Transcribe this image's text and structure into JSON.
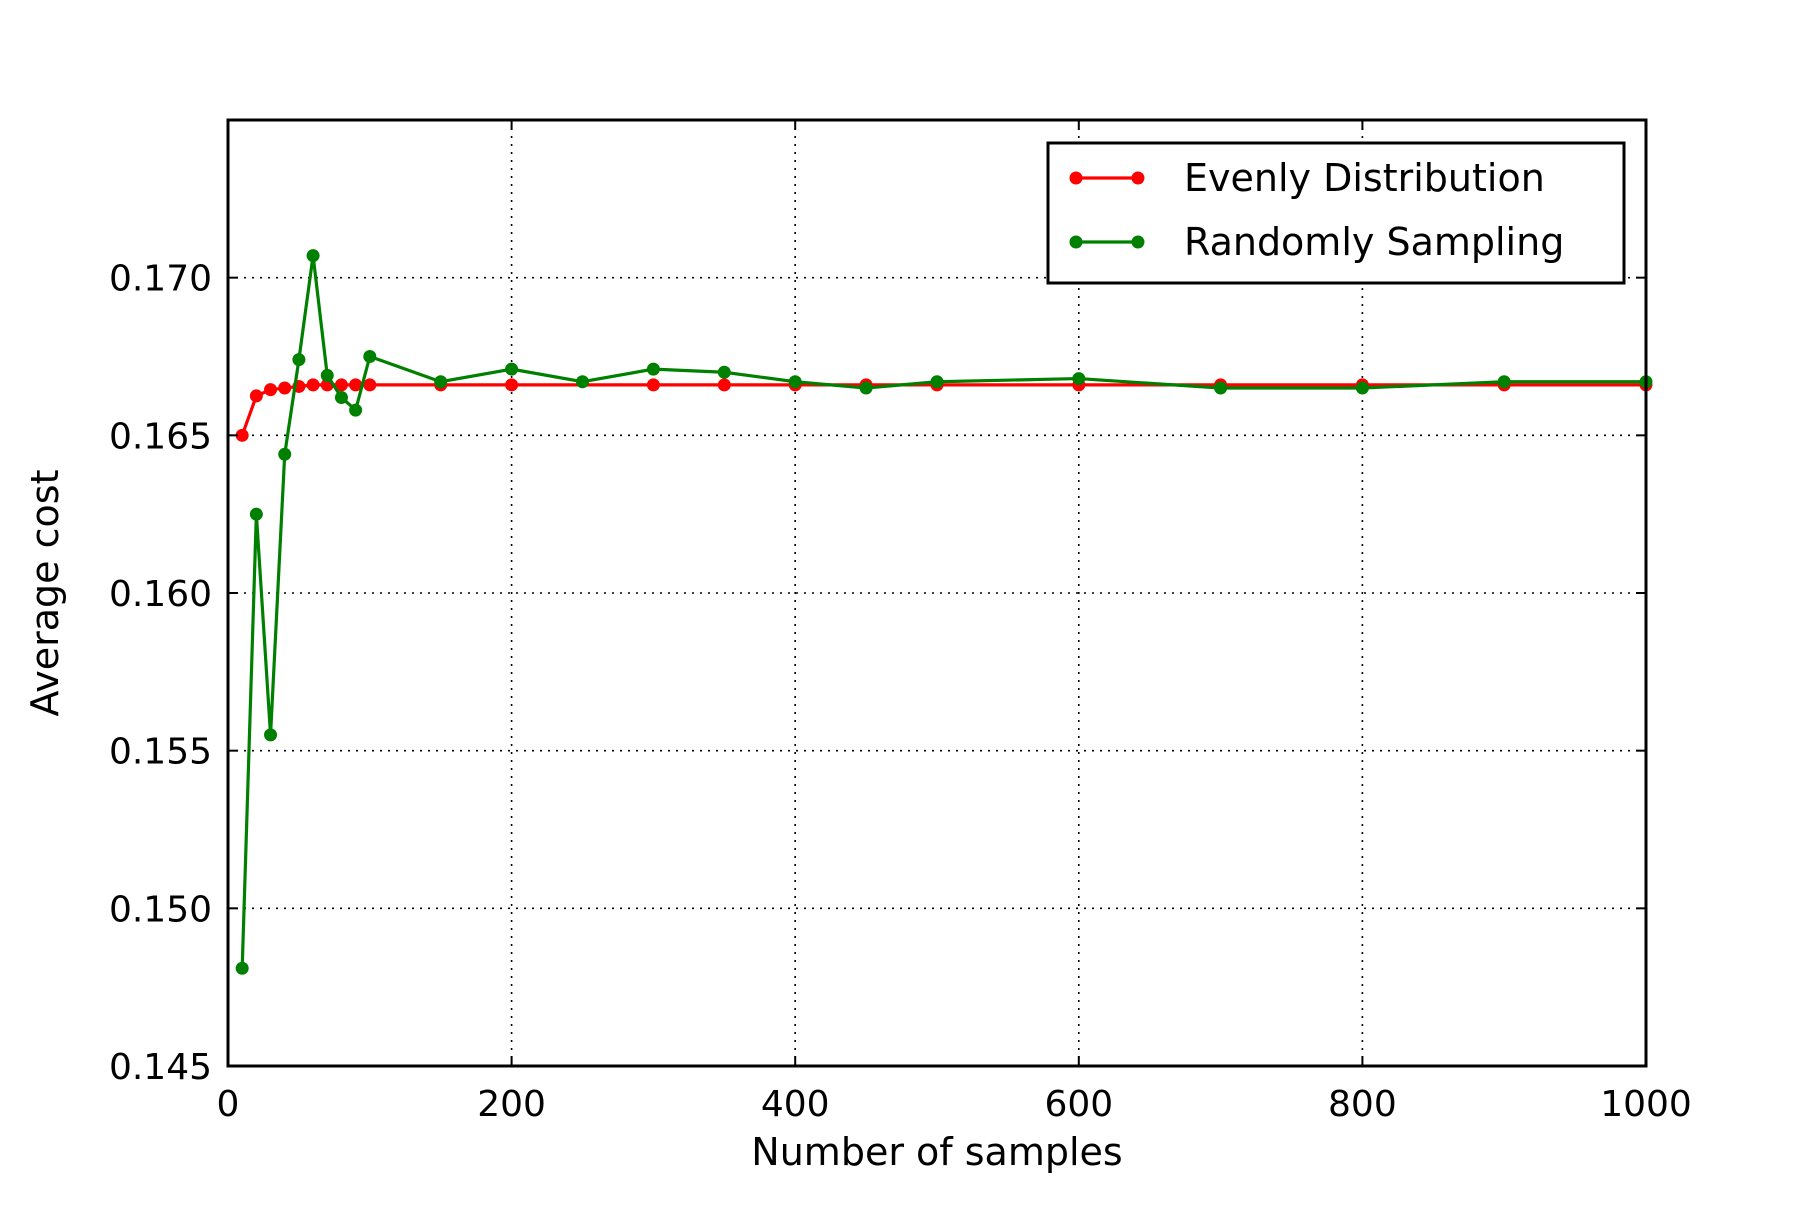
{
  "chart_data": {
    "type": "line",
    "title": "",
    "xlabel": "Number of samples",
    "ylabel": "Average cost",
    "xlim": [
      0,
      1000
    ],
    "ylim": [
      0.145,
      0.175
    ],
    "xticks": [
      0,
      200,
      400,
      600,
      800,
      1000
    ],
    "xtick_labels": [
      "0",
      "200",
      "400",
      "600",
      "800",
      "1000"
    ],
    "yticks": [
      0.145,
      0.15,
      0.155,
      0.16,
      0.165,
      0.17
    ],
    "ytick_labels": [
      "0.145",
      "0.150",
      "0.155",
      "0.160",
      "0.165",
      "0.170"
    ],
    "grid": true,
    "legend_position": "top-right",
    "series": [
      {
        "name": "Evenly Distribution",
        "color": "#ff0000",
        "x": [
          10,
          20,
          30,
          40,
          50,
          60,
          70,
          80,
          90,
          100,
          150,
          200,
          300,
          350,
          400,
          450,
          500,
          600,
          700,
          800,
          900,
          1000
        ],
        "y": [
          0.165,
          0.16625,
          0.16645,
          0.1665,
          0.16655,
          0.1666,
          0.1666,
          0.1666,
          0.1666,
          0.1666,
          0.1666,
          0.1666,
          0.1666,
          0.1666,
          0.1666,
          0.1666,
          0.1666,
          0.1666,
          0.1666,
          0.1666,
          0.1666,
          0.1666
        ]
      },
      {
        "name": "Randomly Sampling",
        "color": "#008000",
        "x": [
          10,
          20,
          30,
          40,
          50,
          60,
          70,
          80,
          90,
          100,
          150,
          200,
          250,
          300,
          350,
          400,
          450,
          500,
          600,
          700,
          800,
          900,
          1000
        ],
        "y": [
          0.1481,
          0.1625,
          0.1555,
          0.1644,
          0.1674,
          0.1707,
          0.1669,
          0.1662,
          0.1658,
          0.1675,
          0.1667,
          0.1671,
          0.1667,
          0.1671,
          0.167,
          0.1667,
          0.1665,
          0.1667,
          0.1668,
          0.1665,
          0.1665,
          0.1667,
          0.1667
        ]
      }
    ]
  }
}
